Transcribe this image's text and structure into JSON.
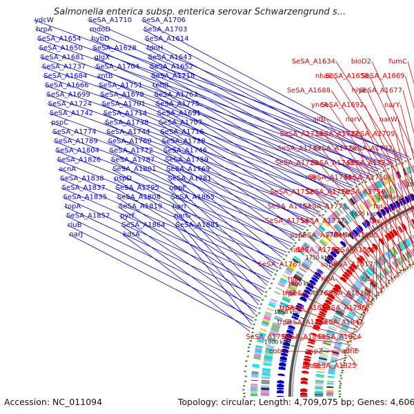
{
  "title": "Salmonella enterica subsp. enterica serovar Schwarzengrund s...",
  "accession_text": "Accession: NC_011094",
  "summary_text": "Topology: circular; Length: 4,709,075 bp; Genes: 4,606",
  "colors": {
    "forward": "#0000cc",
    "reverse": "#e00000",
    "backbone": "#888888",
    "gc_dots": "#2d8a2d"
  },
  "ticks": [
    "1550 kbp",
    "1600 kbp",
    "1650 kbp",
    "1700 kbp",
    "1750 kbp",
    "1800 kbp",
    "1850 kbp",
    "1900 kbp"
  ],
  "forward_labels": [
    "ydcW",
    "SeSA_A1710",
    "SeSA_A1706",
    "hrpA",
    "mdoD",
    "SeSA_A1703",
    "SeSA_A1654",
    "hybD",
    "SeSA_A1614",
    "SeSA_A1650",
    "SeSA_A1628",
    "fdnH",
    "SeSA_A1681",
    "glgX",
    "SeSA_A1643",
    "SeSA_A1737",
    "SeSA_A1704",
    "SeSA_A1652",
    "SeSA_A1684",
    "zntB",
    "SeSA_A1718",
    "SeSA_A1666",
    "SeSA_A1751",
    "tehB",
    "SeSA_A1699",
    "SeSA_A1679",
    "SeSA_A1763",
    "SeSA_A1724",
    "SeSA_A1701",
    "SeSA_A1775",
    "SeSA_A1742",
    "SeSA_A1714",
    "SeSA_A1691",
    "pspC",
    "SeSA_A1738",
    "SeSA_A1707",
    "SeSA_A1774",
    "SeSA_A1744",
    "SeSA_A1716",
    "SeSA_A1789",
    "SeSA_A1760",
    "SeSA_A1728",
    "SeSA_A1804",
    "SeSA_A1772",
    "SeSA_A1746",
    "SeSA_A1826",
    "SeSA_A1787",
    "SeSA_A1759",
    "acnA",
    "SeSA_A1801",
    "SeSA_A1769",
    "SeSA_A1838",
    "pspD",
    "SeSA_A1781",
    "SeSA_A1837",
    "SeSA_A1795",
    "oppF",
    "SeSA_A1835",
    "SeSA_A1808",
    "SeSA_A1865",
    "topA",
    "SeSA_A1819",
    "narI",
    "SeSA_A1852",
    "pyrF",
    "narG",
    "rluB",
    "SeSA_A1864",
    "SeSA_A1881",
    "narJ",
    "kdsA"
  ],
  "reverse_labels": [
    "fumC",
    "bioD2",
    "SeSA_A1634",
    "SeSA_A1669",
    "SeSA_A1658",
    "nhaC",
    "SeSA_A1677",
    "hlyE",
    "SeSA_A1688",
    "narY",
    "SeSA_A1692",
    "yncA",
    "narW",
    "narV",
    "sifB",
    "SeSA_A1709",
    "SeSA_A1727",
    "SeSA_A1713",
    "SeSA_A1732",
    "SeSA_A1720",
    "SeSA_A1743",
    "SeSA_A1723",
    "SeSA_A1745",
    "SeSA_A1729",
    "SeSA_A1750",
    "SeSA_A1735",
    "nifJ",
    "SeSA_A1756",
    "SeSA_A1776",
    "SeSA_A1752",
    "fnr",
    "SeSA_A1773",
    "SeSA_A1753",
    "tpx",
    "SeSA_A1777",
    "SeSA_A1754",
    "SeSA_A1800",
    "SeSA_A1784",
    "pspF",
    "SeSA_A1805",
    "SeSA_A1762",
    "fabI",
    "SeSA_A1817",
    "uspE",
    "SeSA_A1767",
    "cls",
    "ribA",
    "rnb",
    "SeSA_A1818",
    "SeSA_A1768",
    "trpE",
    "SeSA_A1796",
    "SeSA_A1823",
    "trpA",
    "SeSA_A1847",
    "SeSA_A1788",
    "trpB",
    "SeSA_A1824",
    "SeSA_A1849",
    "SeSA_A1790",
    "adhE",
    "ispZ",
    "cobO",
    "SeSA_A1825",
    "lolB"
  ]
}
